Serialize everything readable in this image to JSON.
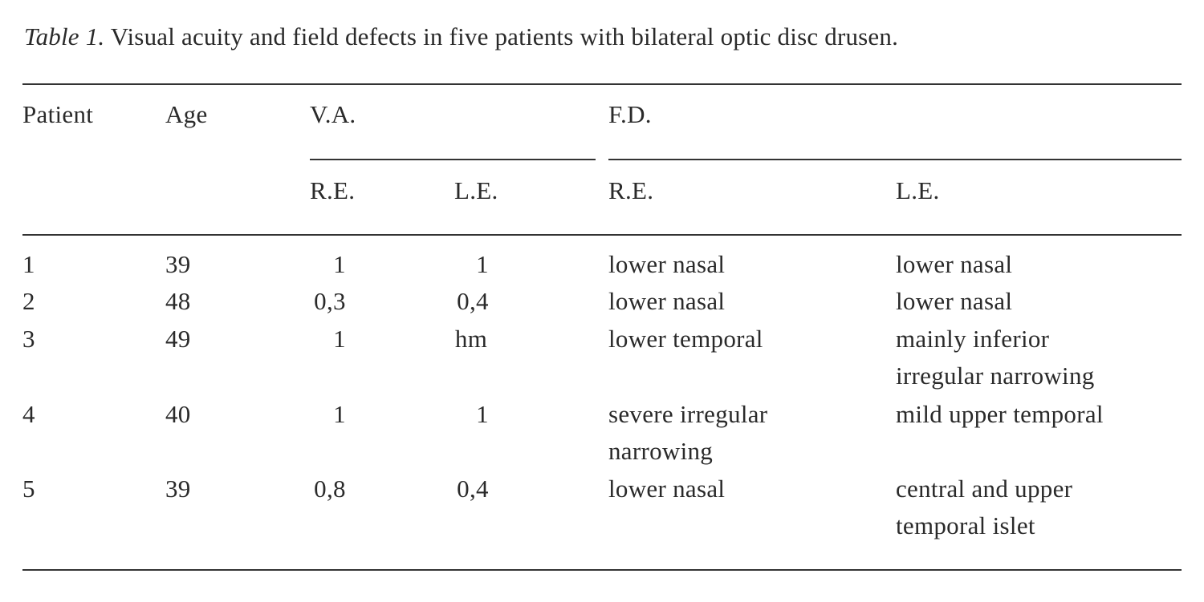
{
  "caption": {
    "label": "Table 1.",
    "text": "Visual acuity and field defects in five patients with bilateral optic disc drusen."
  },
  "headers": {
    "patient": "Patient",
    "age": "Age",
    "va": "V.A.",
    "fd": "F.D.",
    "va_re": "R.E.",
    "va_le": "L.E.",
    "fd_re": "R.E.",
    "fd_le": "L.E."
  },
  "rows": [
    {
      "patient": "1",
      "age": "39",
      "va_re": "1",
      "va_le": "1",
      "fd_re": [
        "lower nasal"
      ],
      "fd_le": [
        "lower nasal"
      ]
    },
    {
      "patient": "2",
      "age": "48",
      "va_re": "0,3",
      "va_le": "0,4",
      "fd_re": [
        "lower nasal"
      ],
      "fd_le": [
        "lower nasal"
      ]
    },
    {
      "patient": "3",
      "age": "49",
      "va_re": "1",
      "va_le": "hm",
      "fd_re": [
        "lower temporal"
      ],
      "fd_le": [
        "mainly inferior",
        "irregular narrowing"
      ]
    },
    {
      "patient": "4",
      "age": "40",
      "va_re": "1",
      "va_le": "1",
      "fd_re": [
        "severe irregular",
        "narrowing"
      ],
      "fd_le": [
        "mild upper temporal"
      ]
    },
    {
      "patient": "5",
      "age": "39",
      "va_re": "0,8",
      "va_le": "0,4",
      "fd_re": [
        "lower nasal"
      ],
      "fd_le": [
        "central and upper",
        "temporal islet"
      ]
    }
  ]
}
